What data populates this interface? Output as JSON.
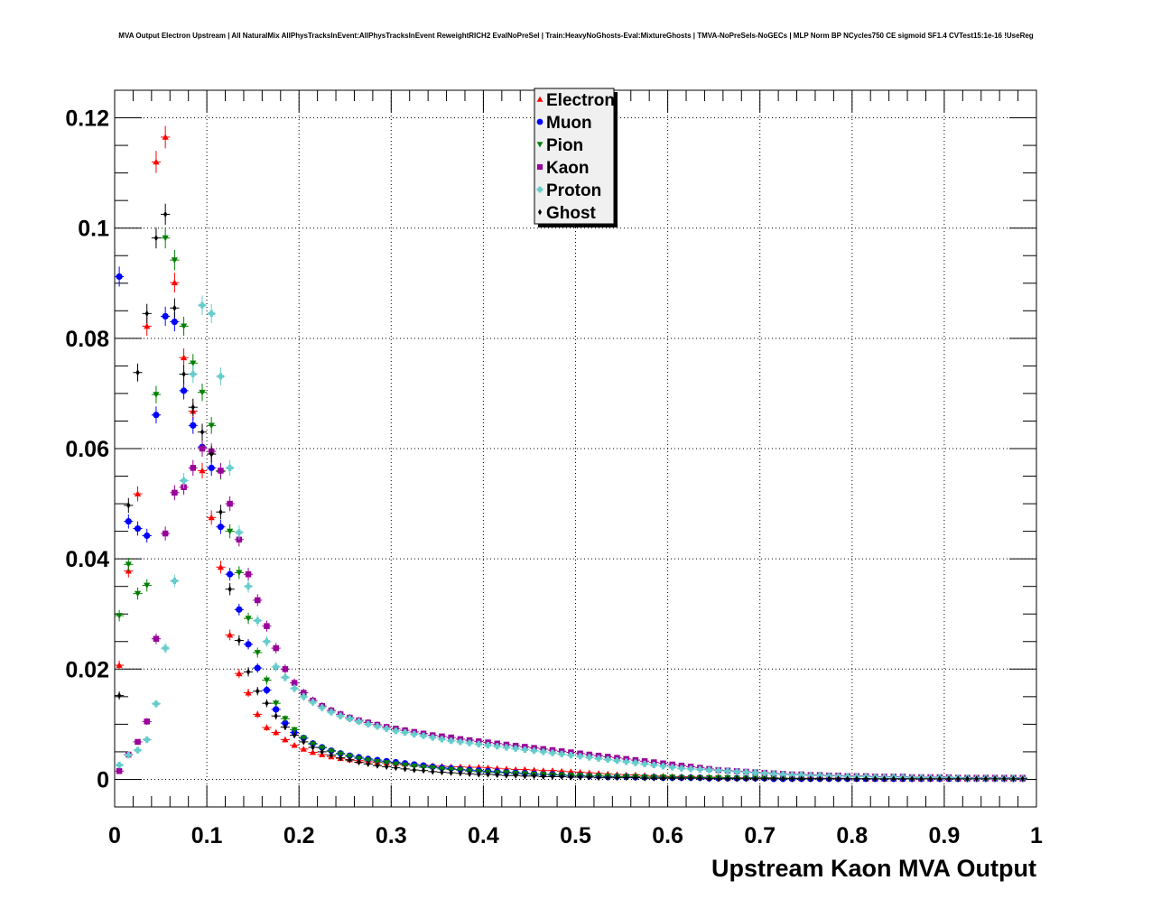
{
  "chart_data": {
    "type": "scatter",
    "title": "MVA Output Electron Upstream | All NaturalMix AllPhysTracksInEvent:AllPhysTracksInEvent ReweightRICH2 EvalNoPreSel | Train:HeavyNoGhosts-Eval:MixtureGhosts | TMVA-NoPreSels-NoGECs | MLP Norm BP NCycles750 CE sigmoid SF1.4 CVTest15:1e-16 !UseReg",
    "xlabel": "Upstream Kaon MVA Output",
    "ylabel": "",
    "xlim": [
      0,
      1
    ],
    "ylim": [
      -0.005,
      0.125
    ],
    "x_ticks": [
      "0",
      "0.1",
      "0.2",
      "0.3",
      "0.4",
      "0.5",
      "0.6",
      "0.7",
      "0.8",
      "0.9",
      "1"
    ],
    "y_ticks": [
      "0",
      "0.02",
      "0.04",
      "0.06",
      "0.08",
      "0.1",
      "0.12"
    ],
    "grid": true,
    "legend_position": "top-center",
    "x": [
      0.005,
      0.015,
      0.025,
      0.035,
      0.045,
      0.055,
      0.065,
      0.075,
      0.085,
      0.095,
      0.105,
      0.115,
      0.125,
      0.135,
      0.145,
      0.155,
      0.165,
      0.175,
      0.185,
      0.195,
      0.205,
      0.215,
      0.225,
      0.235,
      0.245,
      0.255,
      0.265,
      0.275,
      0.285,
      0.295,
      0.305,
      0.315,
      0.325,
      0.335,
      0.345,
      0.355,
      0.365,
      0.375,
      0.385,
      0.395,
      0.405,
      0.415,
      0.425,
      0.435,
      0.445,
      0.455,
      0.465,
      0.475,
      0.485,
      0.495,
      0.505,
      0.515,
      0.525,
      0.535,
      0.545,
      0.555,
      0.565,
      0.575,
      0.585,
      0.595,
      0.605,
      0.615,
      0.625,
      0.635,
      0.645,
      0.655,
      0.665,
      0.675,
      0.685,
      0.695,
      0.705,
      0.715,
      0.725,
      0.735,
      0.745,
      0.755,
      0.765,
      0.775,
      0.785,
      0.795,
      0.805,
      0.815,
      0.825,
      0.835,
      0.845,
      0.855,
      0.865,
      0.875,
      0.885,
      0.895,
      0.905,
      0.915,
      0.925,
      0.935,
      0.945,
      0.955,
      0.965,
      0.975,
      0.985
    ],
    "series": [
      {
        "name": "Electron",
        "color": "#ff0000",
        "marker": "triangle-up",
        "values": [
          0.0207,
          0.0378,
          0.0518,
          0.0822,
          0.112,
          0.1165,
          0.0901,
          0.0765,
          0.0668,
          0.056,
          0.0475,
          0.0385,
          0.0262,
          0.0192,
          0.0157,
          0.0118,
          0.0094,
          0.0085,
          0.0072,
          0.0062,
          0.0055,
          0.0049,
          0.0045,
          0.0041,
          0.0038,
          0.0036,
          0.0034,
          0.0032,
          0.0031,
          0.003,
          0.0029,
          0.0028,
          0.0027,
          0.0026,
          0.0025,
          0.0024,
          0.0023,
          0.0023,
          0.0022,
          0.0022,
          0.0021,
          0.002,
          0.0019,
          0.0018,
          0.0018,
          0.0017,
          0.0016,
          0.0016,
          0.0015,
          0.0014,
          0.0013,
          0.0012,
          0.0011,
          0.001,
          0.0009,
          0.0008,
          0.0008,
          0.0007,
          0.0006,
          0.0006,
          0.0005,
          0.0005,
          0.0005,
          0.0004,
          0.0004,
          0.0004,
          0.0003,
          0.0003,
          0.0003,
          0.0003,
          0.0003,
          0.0003,
          0.0002,
          0.0002,
          0.0002,
          0.0002,
          0.0002,
          0.0002,
          0.0002,
          0.0002,
          0.0001,
          0.0001,
          0.0001,
          0.0001,
          0.0001,
          0.0001,
          0.0001,
          0.0001,
          0.0001,
          0.0001,
          0.0001,
          0.0001,
          0.0001,
          0.0001,
          0.0001,
          0.0001,
          0.0001,
          0.0001,
          0.0001
        ]
      },
      {
        "name": "Muon",
        "color": "#0000ff",
        "marker": "circle",
        "values": [
          0.0912,
          0.0468,
          0.0455,
          0.0442,
          0.0661,
          0.084,
          0.083,
          0.0705,
          0.0642,
          0.0603,
          0.0565,
          0.0458,
          0.0372,
          0.0308,
          0.0245,
          0.0202,
          0.0162,
          0.0127,
          0.0102,
          0.0085,
          0.0075,
          0.0065,
          0.0058,
          0.0052,
          0.0047,
          0.0043,
          0.004,
          0.0037,
          0.0035,
          0.0033,
          0.0031,
          0.0029,
          0.0027,
          0.0025,
          0.0023,
          0.0021,
          0.002,
          0.0018,
          0.0017,
          0.0016,
          0.0015,
          0.0014,
          0.0013,
          0.0012,
          0.0011,
          0.001,
          0.0009,
          0.0009,
          0.0008,
          0.0007,
          0.0007,
          0.0006,
          0.0006,
          0.0005,
          0.0005,
          0.0005,
          0.0004,
          0.0004,
          0.0004,
          0.0003,
          0.0003,
          0.0003,
          0.0003,
          0.0003,
          0.0002,
          0.0002,
          0.0002,
          0.0002,
          0.0002,
          0.0002,
          0.0002,
          0.0001,
          0.0001,
          0.0001,
          0.0001,
          0.0001,
          0.0001,
          0.0001,
          0.0001,
          0.0001,
          0.0001,
          0.0001,
          0.0001,
          0.0001,
          0.0001,
          0.0001,
          0.0001,
          0.0001,
          0.0001,
          0.0001,
          0.0001,
          0.0001,
          0.0001,
          0.0001,
          0.0001,
          0.0001,
          0.0001,
          0.0001,
          0.0001
        ]
      },
      {
        "name": "Pion",
        "color": "#008000",
        "marker": "triangle-down",
        "values": [
          0.0297,
          0.039,
          0.0337,
          0.0352,
          0.0698,
          0.0982,
          0.0942,
          0.0822,
          0.0755,
          0.0702,
          0.0642,
          0.0558,
          0.045,
          0.0375,
          0.0292,
          0.023,
          0.018,
          0.0138,
          0.011,
          0.009,
          0.0075,
          0.0064,
          0.0057,
          0.0051,
          0.0046,
          0.0042,
          0.0038,
          0.0035,
          0.0032,
          0.003,
          0.0028,
          0.0026,
          0.0024,
          0.0022,
          0.0021,
          0.0019,
          0.0018,
          0.0017,
          0.0015,
          0.0014,
          0.0013,
          0.0012,
          0.0012,
          0.0011,
          0.001,
          0.0009,
          0.0009,
          0.0008,
          0.0008,
          0.0007,
          0.0007,
          0.0006,
          0.0006,
          0.0006,
          0.0005,
          0.0005,
          0.0005,
          0.0004,
          0.0004,
          0.0004,
          0.0004,
          0.0003,
          0.0003,
          0.0003,
          0.0003,
          0.0003,
          0.0003,
          0.0002,
          0.0002,
          0.0002,
          0.0002,
          0.0002,
          0.0002,
          0.0002,
          0.0002,
          0.0001,
          0.0001,
          0.0001,
          0.0001,
          0.0001,
          0.0001,
          0.0001,
          0.0001,
          0.0001,
          0.0001,
          0.0001,
          0.0001,
          0.0001,
          0.0001,
          0.0001,
          0.0001,
          0.0001,
          0.0001,
          0.0001,
          0.0001,
          0.0001,
          0.0001,
          0.0001,
          0.0001
        ]
      },
      {
        "name": "Kaon",
        "color": "#990099",
        "marker": "square",
        "values": [
          0.0015,
          0.0045,
          0.0068,
          0.0105,
          0.0255,
          0.0446,
          0.052,
          0.053,
          0.0565,
          0.06,
          0.0595,
          0.056,
          0.05,
          0.0435,
          0.0372,
          0.0325,
          0.0278,
          0.0238,
          0.02,
          0.0175,
          0.0157,
          0.0143,
          0.0133,
          0.0125,
          0.0118,
          0.0112,
          0.0107,
          0.0103,
          0.0099,
          0.0095,
          0.0092,
          0.0089,
          0.0086,
          0.0083,
          0.008,
          0.0078,
          0.0076,
          0.0073,
          0.0071,
          0.0069,
          0.0067,
          0.0065,
          0.0063,
          0.0061,
          0.0059,
          0.0057,
          0.0055,
          0.0053,
          0.0051,
          0.0049,
          0.0047,
          0.0045,
          0.0043,
          0.0041,
          0.0039,
          0.0037,
          0.0035,
          0.0033,
          0.0031,
          0.0029,
          0.0027,
          0.0025,
          0.0023,
          0.0021,
          0.0019,
          0.0017,
          0.0016,
          0.0015,
          0.0014,
          0.0013,
          0.0012,
          0.0011,
          0.001,
          0.0009,
          0.0009,
          0.0008,
          0.0008,
          0.0007,
          0.0007,
          0.0006,
          0.0006,
          0.0006,
          0.0005,
          0.0005,
          0.0005,
          0.0005,
          0.0004,
          0.0004,
          0.0004,
          0.0004,
          0.0004,
          0.0003,
          0.0003,
          0.0003,
          0.0003,
          0.0003,
          0.0003,
          0.0003,
          0.0003
        ]
      },
      {
        "name": "Proton",
        "color": "#66cccc",
        "marker": "cross",
        "values": [
          0.0026,
          0.0044,
          0.0053,
          0.0072,
          0.0137,
          0.0238,
          0.036,
          0.0542,
          0.0735,
          0.086,
          0.0845,
          0.0731,
          0.0565,
          0.0448,
          0.035,
          0.0288,
          0.025,
          0.0204,
          0.0185,
          0.0165,
          0.015,
          0.014,
          0.013,
          0.0122,
          0.0115,
          0.011,
          0.0105,
          0.01,
          0.0096,
          0.0092,
          0.0088,
          0.0085,
          0.0082,
          0.0079,
          0.0076,
          0.0073,
          0.007,
          0.0068,
          0.0066,
          0.0064,
          0.0062,
          0.006,
          0.0058,
          0.0056,
          0.0054,
          0.0052,
          0.005,
          0.0048,
          0.0046,
          0.0044,
          0.0042,
          0.004,
          0.0038,
          0.0036,
          0.0034,
          0.0032,
          0.003,
          0.0028,
          0.0026,
          0.0024,
          0.0022,
          0.002,
          0.0019,
          0.0018,
          0.0017,
          0.0016,
          0.0015,
          0.0014,
          0.0013,
          0.0012,
          0.0011,
          0.001,
          0.0009,
          0.0008,
          0.0008,
          0.0007,
          0.0007,
          0.0006,
          0.0006,
          0.0005,
          0.0005,
          0.0005,
          0.0004,
          0.0004,
          0.0004,
          0.0004,
          0.0003,
          0.0003,
          0.0003,
          0.0003,
          0.0003,
          0.0003,
          0.0002,
          0.0002,
          0.0002,
          0.0002,
          0.0002,
          0.0002,
          0.0002
        ]
      },
      {
        "name": "Ghost",
        "color": "#000000",
        "marker": "diamond",
        "values": [
          0.0152,
          0.0497,
          0.0738,
          0.0845,
          0.0982,
          0.1025,
          0.0855,
          0.0735,
          0.0675,
          0.063,
          0.059,
          0.0485,
          0.0345,
          0.0252,
          0.0195,
          0.016,
          0.0138,
          0.0115,
          0.0095,
          0.008,
          0.0068,
          0.0058,
          0.005,
          0.0044,
          0.0039,
          0.0035,
          0.0031,
          0.0028,
          0.0025,
          0.0023,
          0.0021,
          0.0019,
          0.0017,
          0.0016,
          0.0014,
          0.0013,
          0.0012,
          0.0011,
          0.001,
          0.0009,
          0.0009,
          0.0008,
          0.0007,
          0.0007,
          0.0006,
          0.0006,
          0.0005,
          0.0005,
          0.0005,
          0.0004,
          0.0004,
          0.0004,
          0.0003,
          0.0003,
          0.0003,
          0.0003,
          0.0003,
          0.0002,
          0.0002,
          0.0002,
          0.0002,
          0.0002,
          0.0002,
          0.0002,
          0.0001,
          0.0001,
          0.0001,
          0.0001,
          0.0001,
          0.0001,
          0.0001,
          0.0001,
          0.0001,
          0.0001,
          0.0001,
          0.0001,
          0.0001,
          0.0001,
          0.0001,
          0.0001,
          0.0001,
          0.0001,
          0.0001,
          0.0001,
          0.0001,
          0.0001,
          0.0001,
          0.0001,
          0.0001,
          0.0001,
          0.0001,
          0.0001,
          0.0001,
          0.0001,
          0.0001,
          0.0001,
          0.0001,
          0.0001,
          0.0001
        ]
      }
    ]
  }
}
